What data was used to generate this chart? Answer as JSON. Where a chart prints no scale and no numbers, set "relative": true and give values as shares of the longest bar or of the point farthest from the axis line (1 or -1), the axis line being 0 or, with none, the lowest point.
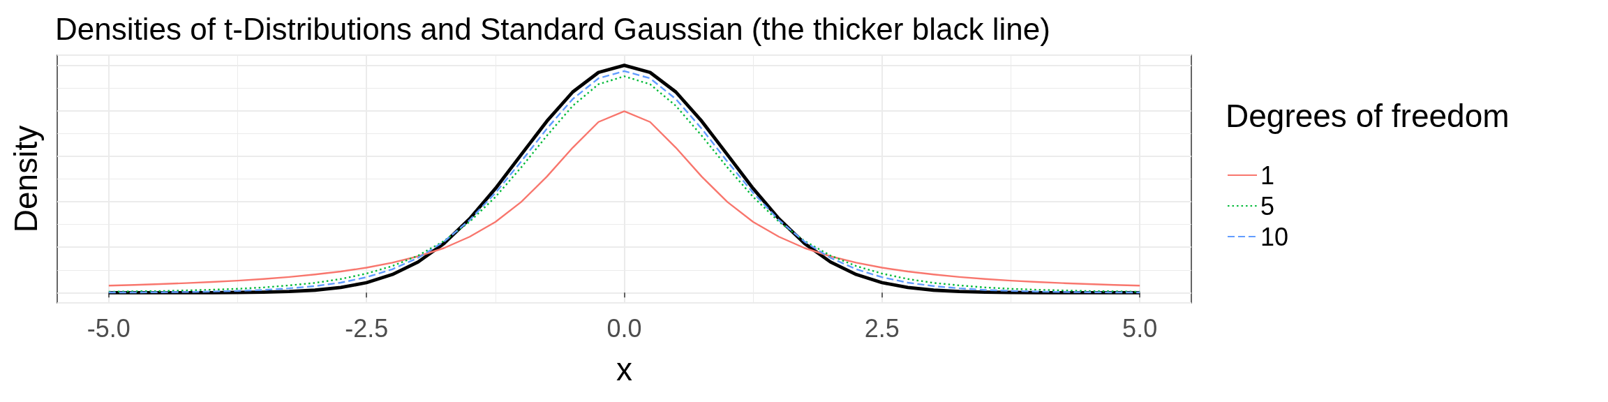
{
  "chart_data": {
    "type": "line",
    "title": "Densities of t-Distributions and Standard Gaussian (the thicker black line)",
    "xlabel": "x",
    "ylabel": "Density",
    "legend_title": "Degrees of freedom",
    "relative": true,
    "x": [
      -5,
      -4.75,
      -4.5,
      -4.25,
      -4,
      -3.75,
      -3.5,
      -3.25,
      -3,
      -2.75,
      -2.5,
      -2.25,
      -2,
      -1.75,
      -1.5,
      -1.25,
      -1,
      -0.75,
      -0.5,
      -0.25,
      0,
      0.25,
      0.5,
      0.75,
      1,
      1.25,
      1.5,
      1.75,
      2,
      2.25,
      2.5,
      2.75,
      3,
      3.25,
      3.5,
      3.75,
      4,
      4.25,
      4.5,
      4.75,
      5
    ],
    "series": [
      {
        "name": "1",
        "color": "#f8766d",
        "line_style": "solid",
        "values": [
          0.031,
          0.034,
          0.038,
          0.042,
          0.047,
          0.053,
          0.06,
          0.069,
          0.08,
          0.093,
          0.11,
          0.132,
          0.16,
          0.196,
          0.246,
          0.311,
          0.399,
          0.511,
          0.638,
          0.751,
          0.798,
          0.751,
          0.638,
          0.511,
          0.399,
          0.311,
          0.246,
          0.196,
          0.16,
          0.132,
          0.11,
          0.093,
          0.08,
          0.069,
          0.06,
          0.053,
          0.047,
          0.042,
          0.038,
          0.034,
          0.031
        ]
      },
      {
        "name": "5",
        "color": "#00ba38",
        "line_style": "dotted",
        "values": [
          0.004,
          0.006,
          0.007,
          0.01,
          0.013,
          0.017,
          0.023,
          0.032,
          0.043,
          0.06,
          0.084,
          0.117,
          0.163,
          0.227,
          0.312,
          0.421,
          0.551,
          0.691,
          0.822,
          0.917,
          0.952,
          0.917,
          0.822,
          0.691,
          0.551,
          0.421,
          0.312,
          0.227,
          0.163,
          0.117,
          0.084,
          0.06,
          0.043,
          0.032,
          0.023,
          0.017,
          0.013,
          0.01,
          0.007,
          0.006,
          0.004
        ]
      },
      {
        "name": "10",
        "color": "#619cff",
        "line_style": "dashed",
        "values": [
          0.001,
          0.001,
          0.002,
          0.003,
          0.005,
          0.008,
          0.012,
          0.019,
          0.029,
          0.044,
          0.068,
          0.103,
          0.153,
          0.224,
          0.319,
          0.439,
          0.577,
          0.722,
          0.852,
          0.943,
          0.975,
          0.943,
          0.852,
          0.722,
          0.577,
          0.439,
          0.319,
          0.224,
          0.153,
          0.103,
          0.068,
          0.044,
          0.029,
          0.019,
          0.012,
          0.008,
          0.005,
          0.003,
          0.002,
          0.001,
          0.001
        ]
      },
      {
        "color": "#000000",
        "line_style": "solid",
        "values": [
          0,
          0,
          0,
          0,
          0,
          0.001,
          0.002,
          0.005,
          0.011,
          0.023,
          0.044,
          0.08,
          0.135,
          0.216,
          0.325,
          0.458,
          0.607,
          0.755,
          0.883,
          0.969,
          1,
          0.969,
          0.883,
          0.755,
          0.607,
          0.458,
          0.325,
          0.216,
          0.135,
          0.08,
          0.044,
          0.023,
          0.011,
          0.005,
          0.002,
          0.001,
          0,
          0,
          0,
          0,
          0
        ]
      }
    ],
    "xlim": [
      -5.5,
      5.5
    ],
    "xticks": [
      {
        "value": -5,
        "label": "-5.0"
      },
      {
        "value": -2.5,
        "label": "-2.5"
      },
      {
        "value": 0,
        "label": "0.0"
      },
      {
        "value": 2.5,
        "label": "2.5"
      },
      {
        "value": 5,
        "label": "5.0"
      }
    ],
    "tick_labels": "x",
    "grid": true,
    "legend": "right",
    "marker": "none"
  }
}
